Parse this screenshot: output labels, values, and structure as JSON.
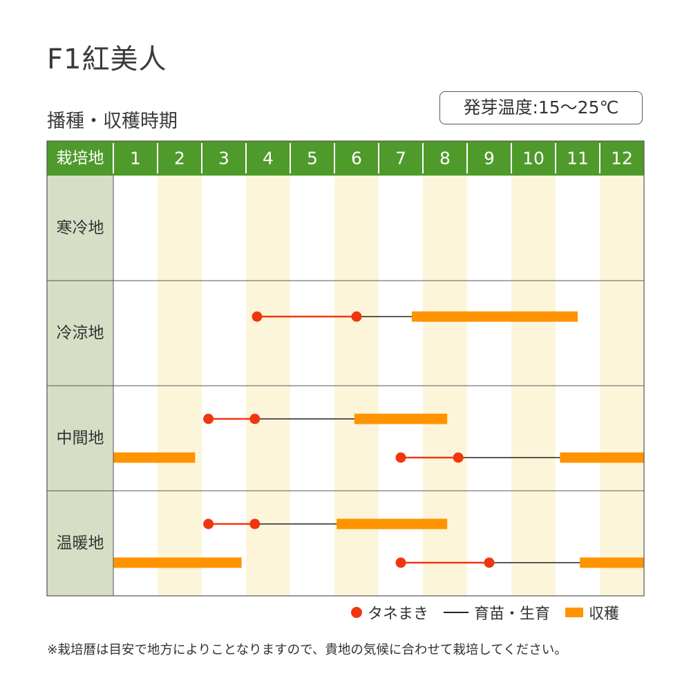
{
  "header": {
    "title": "F1紅美人",
    "subtitle": "播種・収穫時期",
    "germination_temp": "発芽温度:15〜25℃"
  },
  "legend": {
    "sowing": "タネまき",
    "nursery": "育苗・生育",
    "harvest": "収穫"
  },
  "note": "※栽培暦は目安で地方によりことなりますので、貴地の気候に合わせて栽培してください。",
  "colors": {
    "header_green": "#4e9a2b",
    "region_bg": "#d6dec5",
    "alt_column": "#fdf5da",
    "sowing_dot": "#f0360f",
    "harvest_bar": "#ff9300",
    "nursery_line": "#222222"
  },
  "chart_data": {
    "type": "gantt",
    "corner_label": "栽培地",
    "months": [
      "1",
      "2",
      "3",
      "4",
      "5",
      "6",
      "7",
      "8",
      "9",
      "10",
      "11",
      "12"
    ],
    "x_unit": "month (1.0 = start of January, 13.0 = end of December)",
    "rows": [
      {
        "region": "寒冷地",
        "tracks": []
      },
      {
        "region": "冷涼地",
        "tracks": [
          {
            "sowing": [
              4.25,
              6.5
            ],
            "nursery": [
              6.5,
              7.75
            ],
            "harvest": [
              [
                7.75,
                11.5
              ]
            ]
          }
        ]
      },
      {
        "region": "中間地",
        "tracks": [
          {
            "sowing": [
              3.15,
              4.2
            ],
            "nursery": [
              4.2,
              6.45
            ],
            "harvest": [
              [
                6.45,
                8.55
              ]
            ]
          },
          {
            "sowing": [
              7.5,
              8.8
            ],
            "nursery": [
              8.8,
              11.1
            ],
            "harvest": [
              [
                11.1,
                13.0
              ],
              [
                1.0,
                2.85
              ]
            ]
          }
        ]
      },
      {
        "region": "温暖地",
        "tracks": [
          {
            "sowing": [
              3.15,
              4.2
            ],
            "nursery": [
              4.2,
              6.05
            ],
            "harvest": [
              [
                6.05,
                8.55
              ]
            ]
          },
          {
            "sowing": [
              7.5,
              9.5
            ],
            "nursery": [
              9.5,
              11.55
            ],
            "harvest": [
              [
                11.55,
                13.0
              ],
              [
                1.0,
                3.9
              ]
            ]
          }
        ]
      }
    ]
  }
}
